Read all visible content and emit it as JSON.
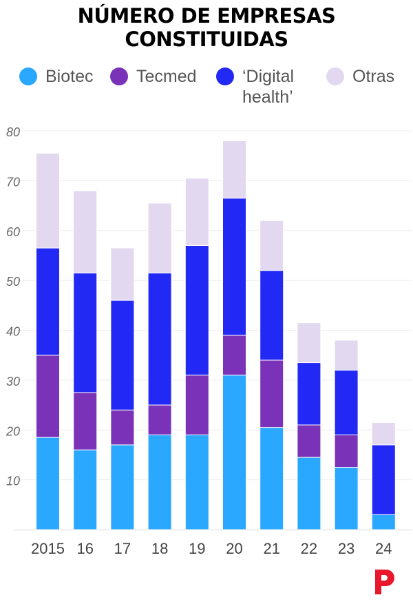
{
  "header": {
    "title_line1": "NÚMERO DE EMPRESAS",
    "title_line2": "CONSTITUIDAS"
  },
  "colors": {
    "biotec": "#2aa8ff",
    "tecmed": "#7a32b8",
    "digital": "#2229f5",
    "otras": "#e2d8ef",
    "logo": "#e8172c"
  },
  "logo_icon": "p-logo-icon",
  "chart_data": {
    "type": "bar",
    "stacked": true,
    "title": "NÚMERO DE EMPRESAS CONSTITUIDAS",
    "xlabel": "",
    "ylabel": "",
    "ylim": [
      0,
      80
    ],
    "yticks": [
      10,
      20,
      30,
      40,
      50,
      60,
      70,
      80
    ],
    "grid": true,
    "legend_position": "top",
    "categories": [
      "2015",
      "16",
      "17",
      "18",
      "19",
      "20",
      "21",
      "22",
      "23",
      "24"
    ],
    "series": [
      {
        "name": "Biotec",
        "values": [
          18.5,
          16,
          17,
          19,
          19,
          31,
          20.5,
          14.5,
          12.5,
          3
        ]
      },
      {
        "name": "Tecmed",
        "values": [
          16.5,
          11.5,
          7,
          6,
          12,
          8,
          13.5,
          6.5,
          6.5,
          0
        ]
      },
      {
        "name": "‘Digital health’",
        "values": [
          21.5,
          24,
          22,
          26.5,
          26,
          27.5,
          18,
          12.5,
          13,
          14
        ]
      },
      {
        "name": "Otras",
        "values": [
          19,
          16.5,
          10.5,
          14,
          13.5,
          11.5,
          10,
          8,
          6,
          4.5
        ]
      }
    ]
  }
}
